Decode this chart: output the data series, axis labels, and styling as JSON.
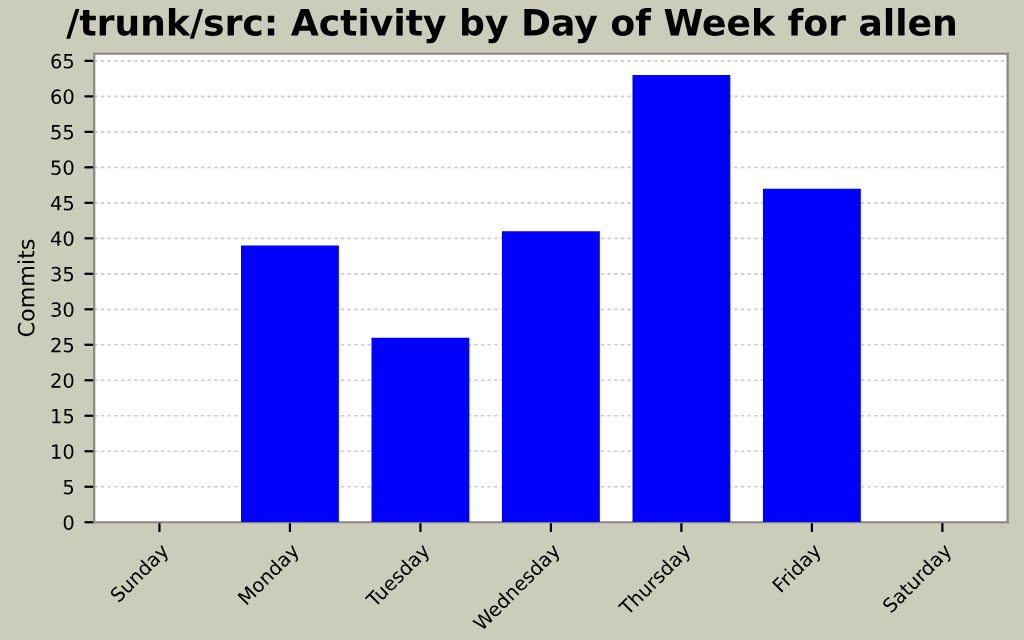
{
  "chart_data": {
    "type": "bar",
    "title": "/trunk/src: Activity by Day of Week for allen",
    "ylabel": "Commits",
    "categories": [
      "Sunday",
      "Monday",
      "Tuesday",
      "Wednesday",
      "Thursday",
      "Friday",
      "Saturday"
    ],
    "values": [
      0,
      39,
      26,
      41,
      63,
      47,
      0
    ],
    "color": "#0000ff",
    "ylim": [
      0,
      66
    ],
    "yticks": [
      0,
      5,
      10,
      15,
      20,
      25,
      30,
      35,
      40,
      45,
      50,
      55,
      60,
      65
    ],
    "grid": "y"
  }
}
